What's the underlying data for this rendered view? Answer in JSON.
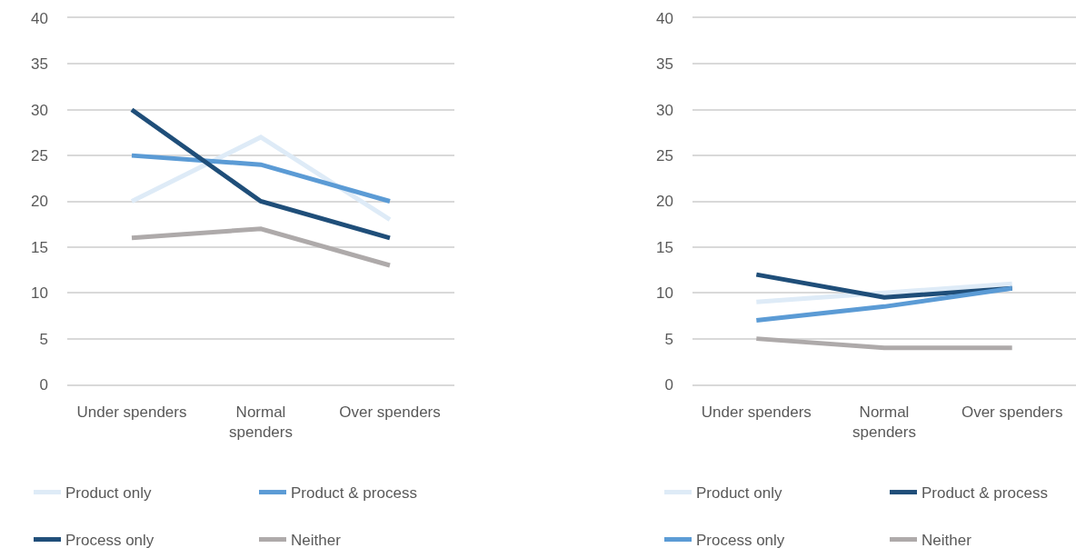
{
  "chart_data": [
    {
      "type": "line",
      "categories": [
        "Under spenders",
        "Normal spenders",
        "Over spenders"
      ],
      "ylim": [
        0,
        40
      ],
      "yticks": [
        0,
        5,
        10,
        15,
        20,
        25,
        30,
        35,
        40
      ],
      "grid": "y",
      "legend": "bottom",
      "series": [
        {
          "name": "Product only",
          "color": "#deebf7",
          "values": [
            20,
            27,
            18
          ]
        },
        {
          "name": "Product & process",
          "color": "#5b9bd5",
          "values": [
            25,
            24,
            20
          ]
        },
        {
          "name": "Process only",
          "color": "#1f4e79",
          "values": [
            30,
            20,
            16
          ]
        },
        {
          "name": "Neither",
          "color": "#aeaaaa",
          "values": [
            16,
            17,
            13
          ]
        }
      ]
    },
    {
      "type": "line",
      "categories": [
        "Under spenders",
        "Normal spenders",
        "Over spenders"
      ],
      "ylim": [
        0,
        40
      ],
      "yticks": [
        0,
        5,
        10,
        15,
        20,
        25,
        30,
        35,
        40
      ],
      "grid": "y",
      "legend": "bottom",
      "series": [
        {
          "name": "Product only",
          "color": "#deebf7",
          "values": [
            9,
            10,
            11
          ]
        },
        {
          "name": "Product & process",
          "color": "#1f4e79",
          "values": [
            12,
            9.5,
            10.5
          ]
        },
        {
          "name": "Process only",
          "color": "#5b9bd5",
          "values": [
            7,
            8.5,
            10.5
          ]
        },
        {
          "name": "Neither",
          "color": "#aeaaaa",
          "values": [
            5,
            4,
            4
          ]
        }
      ]
    }
  ]
}
